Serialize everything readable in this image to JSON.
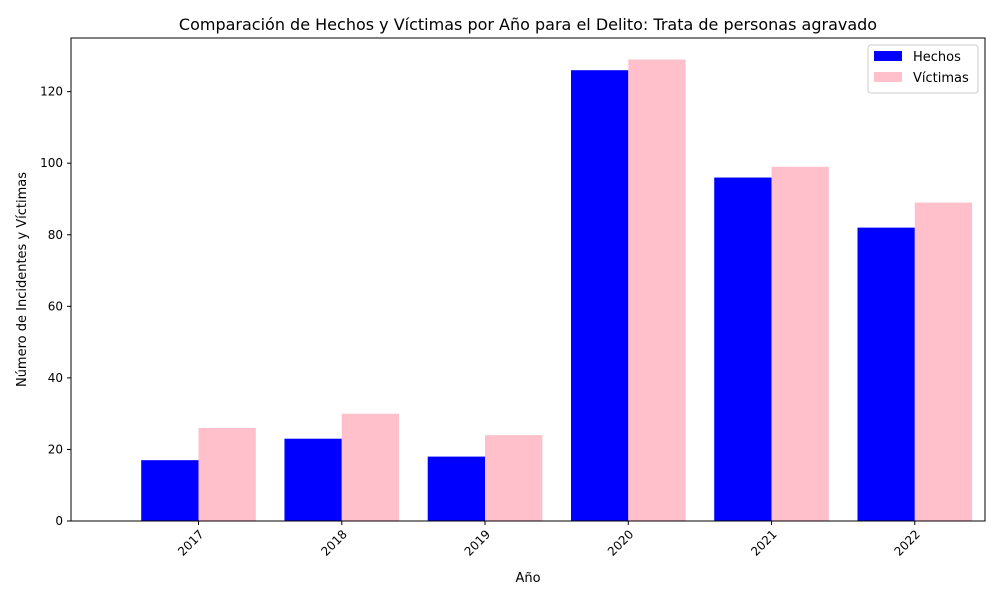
{
  "chart_data": {
    "type": "bar",
    "title": "Comparación de Hechos y Víctimas por Año para el Delito: Trata de personas agravado",
    "xlabel": "Año",
    "ylabel": "Número de Incidentes y Víctimas",
    "categories": [
      "2017",
      "2018",
      "2019",
      "2020",
      "2021",
      "2022"
    ],
    "series": [
      {
        "name": "Hechos",
        "color": "#0000ff",
        "values": [
          17,
          23,
          18,
          126,
          96,
          82
        ]
      },
      {
        "name": "Víctimas",
        "color": "#ffc0cb",
        "values": [
          26,
          30,
          24,
          129,
          99,
          89
        ]
      }
    ],
    "ylim": [
      0,
      135
    ],
    "yticks": [
      0,
      20,
      40,
      60,
      80,
      100,
      120
    ],
    "x_tick_rotation_deg": 45,
    "grid": false,
    "legend_position": "top-right"
  }
}
